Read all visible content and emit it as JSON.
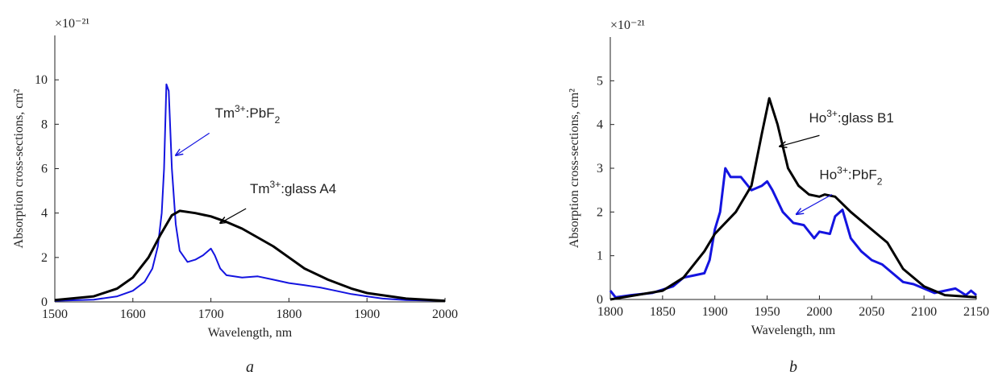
{
  "chart_data": [
    {
      "type": "line",
      "caption": "a",
      "exponent_label": "×10⁻²¹",
      "xlabel": "Wavelength, nm",
      "ylabel": "Absorption cross-sections, cm²",
      "xlim": [
        1500,
        2000
      ],
      "xticks": [
        1500,
        1600,
        1700,
        1800,
        1900,
        2000
      ],
      "ylim": [
        0,
        12
      ],
      "yticks": [
        0,
        2,
        4,
        6,
        8,
        10
      ],
      "series": [
        {
          "name": "Tm3+:PbF2",
          "color": "#1414e0",
          "x": [
            1500,
            1550,
            1580,
            1600,
            1615,
            1625,
            1632,
            1637,
            1640,
            1643,
            1646,
            1650,
            1655,
            1660,
            1670,
            1680,
            1690,
            1700,
            1705,
            1712,
            1720,
            1740,
            1760,
            1780,
            1800,
            1820,
            1840,
            1860,
            1880,
            1900,
            1920,
            1950,
            2000
          ],
          "values": [
            0.05,
            0.1,
            0.25,
            0.5,
            0.9,
            1.5,
            2.5,
            4,
            6,
            9.8,
            9.5,
            6,
            3.5,
            2.3,
            1.8,
            1.9,
            2.1,
            2.4,
            2.1,
            1.5,
            1.2,
            1.1,
            1.15,
            1.0,
            0.85,
            0.75,
            0.65,
            0.5,
            0.35,
            0.25,
            0.15,
            0.08,
            0.05
          ]
        },
        {
          "name": "Tm3+:glass A4",
          "color": "#000000",
          "x": [
            1500,
            1550,
            1580,
            1600,
            1620,
            1635,
            1650,
            1660,
            1680,
            1700,
            1720,
            1740,
            1760,
            1780,
            1800,
            1820,
            1850,
            1880,
            1900,
            1950,
            2000
          ],
          "values": [
            0.08,
            0.25,
            0.6,
            1.1,
            2.0,
            3.0,
            3.9,
            4.1,
            4.0,
            3.85,
            3.6,
            3.3,
            2.9,
            2.5,
            2.0,
            1.5,
            1.0,
            0.6,
            0.4,
            0.15,
            0.05
          ]
        }
      ]
    },
    {
      "type": "line",
      "caption": "b",
      "exponent_label": "×10⁻²¹",
      "xlabel": "Wavelength, nm",
      "ylabel": "Absorption cross-sections, cm²",
      "xlim": [
        1800,
        2150
      ],
      "xticks": [
        1800,
        1850,
        1900,
        1950,
        2000,
        2050,
        2100,
        2150
      ],
      "ylim": [
        0,
        6
      ],
      "yticks": [
        0,
        1,
        2,
        3,
        4,
        5
      ],
      "series": [
        {
          "name": "Ho3+:PbF2",
          "color": "#1414e0",
          "x": [
            1800,
            1805,
            1820,
            1840,
            1860,
            1870,
            1880,
            1890,
            1895,
            1900,
            1905,
            1910,
            1915,
            1925,
            1935,
            1945,
            1950,
            1955,
            1965,
            1975,
            1985,
            1995,
            2000,
            2010,
            2015,
            2022,
            2030,
            2040,
            2050,
            2060,
            2070,
            2080,
            2090,
            2100,
            2110,
            2120,
            2130,
            2140,
            2145,
            2150
          ],
          "values": [
            0.2,
            0.05,
            0.1,
            0.15,
            0.3,
            0.5,
            0.55,
            0.6,
            0.9,
            1.6,
            2.0,
            3.0,
            2.8,
            2.8,
            2.5,
            2.6,
            2.7,
            2.5,
            2.0,
            1.75,
            1.7,
            1.4,
            1.55,
            1.5,
            1.9,
            2.05,
            1.4,
            1.1,
            0.9,
            0.8,
            0.6,
            0.4,
            0.35,
            0.25,
            0.15,
            0.2,
            0.25,
            0.1,
            0.2,
            0.1
          ]
        },
        {
          "name": "Ho3+:glass B1",
          "color": "#000000",
          "x": [
            1800,
            1850,
            1870,
            1890,
            1900,
            1920,
            1935,
            1945,
            1952,
            1960,
            1970,
            1980,
            1990,
            2000,
            2005,
            2015,
            2030,
            2050,
            2065,
            2080,
            2100,
            2120,
            2150
          ],
          "values": [
            0,
            0.2,
            0.5,
            1.1,
            1.5,
            2.0,
            2.6,
            3.8,
            4.6,
            4.0,
            3.0,
            2.6,
            2.4,
            2.35,
            2.4,
            2.35,
            2.0,
            1.6,
            1.3,
            0.7,
            0.3,
            0.1,
            0.05
          ]
        }
      ]
    }
  ]
}
